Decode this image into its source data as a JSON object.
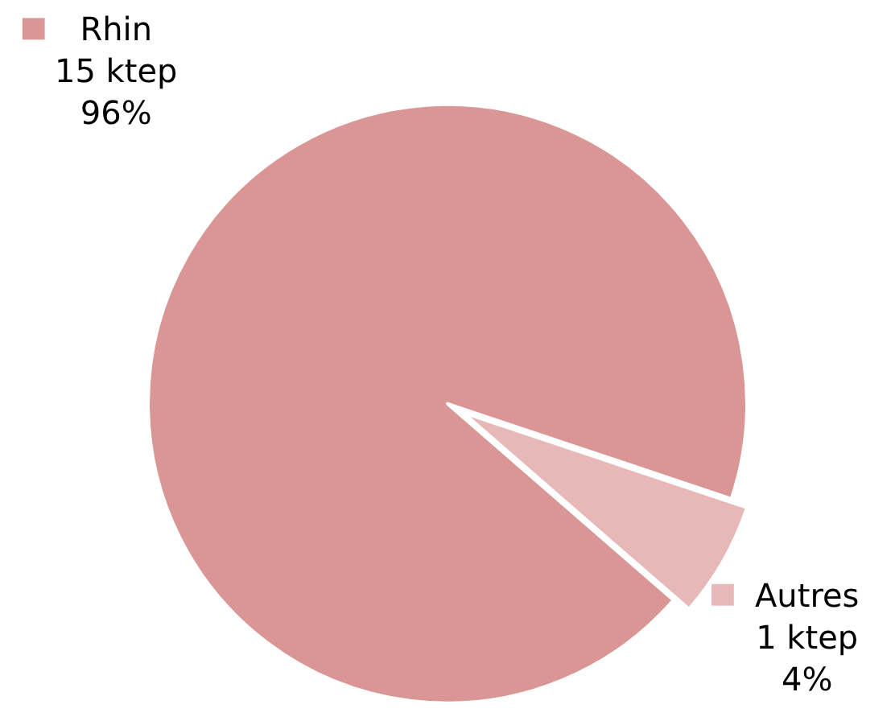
{
  "chart_data": {
    "type": "pie",
    "categories": [
      "Rhin",
      "Autres"
    ],
    "values": [
      15,
      1
    ],
    "value_labels": [
      "15 ktep",
      "1 ktep"
    ],
    "annotations": [
      "96%",
      "4%"
    ],
    "colors": [
      "#d99694",
      "#e6b9b8"
    ],
    "legend": "top left"
  }
}
